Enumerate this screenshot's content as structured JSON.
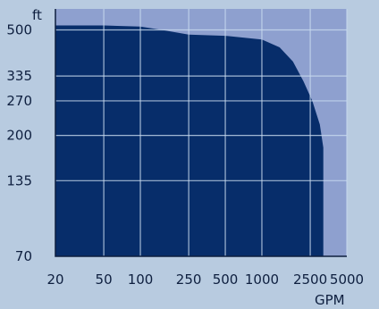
{
  "chart_data": {
    "type": "area",
    "y_unit": "ft",
    "x_unit": "GPM",
    "x_scale": "log",
    "y_scale": "log",
    "x_ticks": [
      20,
      50,
      100,
      250,
      500,
      1000,
      2500,
      5000
    ],
    "x_tick_labels": [
      "20",
      "50",
      "100",
      "250",
      "500",
      "1000",
      "2500",
      "5000"
    ],
    "y_ticks": [
      70,
      135,
      200,
      270,
      335,
      500
    ],
    "y_tick_labels": [
      "70",
      "135",
      "200",
      "270",
      "335",
      "500"
    ],
    "xlim": [
      20,
      5000
    ],
    "ylim": [
      70,
      600
    ],
    "grid": true,
    "series": [
      {
        "x": [
          20,
          50,
          100,
          150,
          250,
          500,
          1000,
          1400,
          1800,
          2200,
          2600,
          3000,
          3200,
          3200,
          20
        ],
        "y": [
          520,
          520,
          515,
          500,
          480,
          475,
          460,
          430,
          380,
          320,
          270,
          220,
          180,
          70,
          70
        ]
      }
    ],
    "colors": {
      "plot_background": "#8ea0cf",
      "area": "#072d6a",
      "grid": "#c9dbef",
      "page": "#b8cbe0",
      "text": "#0e1f3f"
    }
  }
}
